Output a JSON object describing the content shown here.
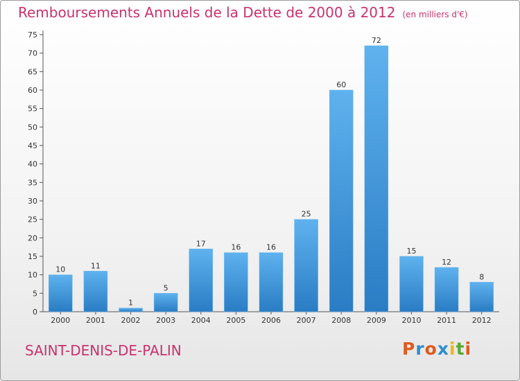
{
  "chart_data": {
    "type": "bar",
    "title": "Remboursements Annuels de la Dette de 2000 à 2012",
    "subtitle": "(en milliers d'€)",
    "categories": [
      "2000",
      "2001",
      "2002",
      "2003",
      "2004",
      "2005",
      "2006",
      "2007",
      "2008",
      "2009",
      "2010",
      "2011",
      "2012"
    ],
    "values": [
      10,
      11,
      1,
      5,
      17,
      16,
      16,
      25,
      60,
      72,
      15,
      12,
      8
    ],
    "ylim": [
      0,
      75
    ],
    "yticks": [
      0,
      5,
      10,
      15,
      20,
      25,
      30,
      35,
      40,
      45,
      50,
      55,
      60,
      65,
      70,
      75
    ],
    "grid": false,
    "bar_color": "#3a8fd6",
    "xlabel": "",
    "ylabel": ""
  },
  "footer": {
    "commune": "SAINT-DENIS-DE-PALIN",
    "logo_text": "Proxiti",
    "logo_colors": [
      "#e05a1e",
      "#2c8fcf",
      "#e05a1e",
      "#2c8fcf",
      "#f2b416",
      "#5aa830",
      "#e05a1e"
    ]
  },
  "colors": {
    "title": "#c8326e"
  }
}
